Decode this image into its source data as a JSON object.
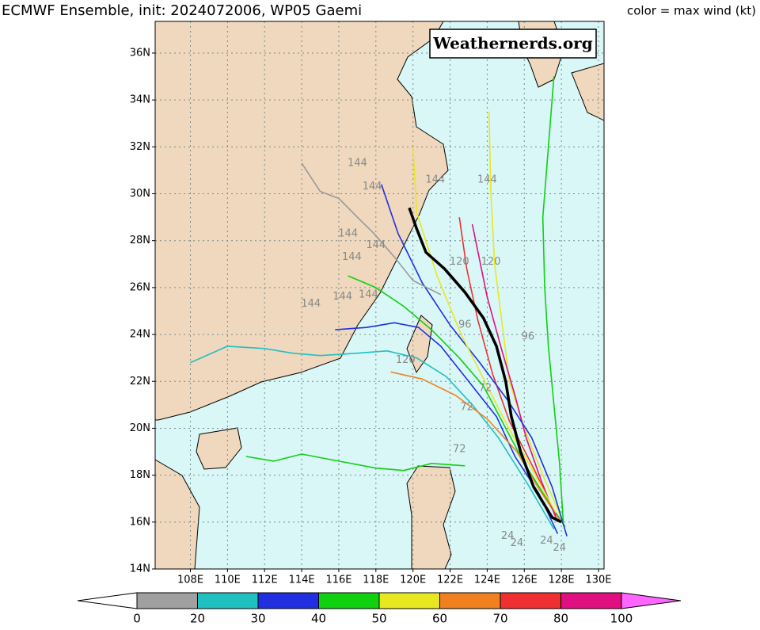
{
  "title": "ECMWF Ensemble, init: 2024072006, WP05 Gaemi",
  "subtitle": "color = max wind (kt)",
  "watermark": "Weathernerds.org",
  "map": {
    "xlim": [
      106.1,
      130.3
    ],
    "ylim": [
      14,
      37.35
    ],
    "xticks": [
      {
        "value": 108,
        "label": "108E"
      },
      {
        "value": 110,
        "label": "110E"
      },
      {
        "value": 112,
        "label": "112E"
      },
      {
        "value": 114,
        "label": "114E"
      },
      {
        "value": 116,
        "label": "116E"
      },
      {
        "value": 118,
        "label": "118E"
      },
      {
        "value": 120,
        "label": "120E"
      },
      {
        "value": 122,
        "label": "122E"
      },
      {
        "value": 124,
        "label": "124E"
      },
      {
        "value": 126,
        "label": "126E"
      },
      {
        "value": 128,
        "label": "128E"
      },
      {
        "value": 130,
        "label": "130E"
      }
    ],
    "yticks": [
      {
        "value": 14,
        "label": "14N"
      },
      {
        "value": 16,
        "label": "16N"
      },
      {
        "value": 18,
        "label": "18N"
      },
      {
        "value": 20,
        "label": "20N"
      },
      {
        "value": 22,
        "label": "22N"
      },
      {
        "value": 24,
        "label": "24N"
      },
      {
        "value": 26,
        "label": "26N"
      },
      {
        "value": 28,
        "label": "28N"
      },
      {
        "value": 30,
        "label": "30N"
      },
      {
        "value": 32,
        "label": "32N"
      },
      {
        "value": 34,
        "label": "34N"
      },
      {
        "value": 36,
        "label": "36N"
      }
    ],
    "grid": true,
    "ocean_color": "#d9f7f7",
    "tracks": [
      {
        "color": "#000000",
        "lons": [
          128.0,
          127.5,
          126.5,
          125.8,
          125.3,
          125.0,
          124.5,
          123.8,
          122.8,
          121.7,
          120.7,
          120.2,
          119.8
        ],
        "lats": [
          16.0,
          16.2,
          17.5,
          19.0,
          20.5,
          22.0,
          23.5,
          24.7,
          25.8,
          26.8,
          27.5,
          28.5,
          29.4
        ]
      },
      {
        "color": "#10d010",
        "lons": [
          128.2,
          127.2,
          126.0,
          125.0,
          123.8,
          122.5,
          121.0,
          119.5,
          118.0,
          116.5
        ],
        "lats": [
          15.8,
          17.0,
          18.5,
          20.0,
          21.8,
          23.0,
          24.2,
          25.2,
          26.0,
          26.5
        ]
      },
      {
        "color": "#2030e0",
        "lons": [
          127.8,
          126.8,
          125.5,
          124.5,
          123.0,
          121.5,
          120.3,
          119.0,
          117.5,
          115.8
        ],
        "lats": [
          15.5,
          17.2,
          18.8,
          20.5,
          22.0,
          23.5,
          24.3,
          24.5,
          24.3,
          24.2
        ]
      },
      {
        "color": "#20c0c0",
        "lons": [
          127.6,
          126.2,
          124.6,
          123.2,
          121.8,
          120.2,
          118.6,
          117.0,
          115.0,
          113.5,
          112.0,
          110.0,
          108.0
        ],
        "lats": [
          15.7,
          17.6,
          19.6,
          21.0,
          22.2,
          23.0,
          23.3,
          23.2,
          23.1,
          23.2,
          23.4,
          23.5,
          22.8
        ]
      },
      {
        "color": "#e8e820",
        "lons": [
          128.0,
          127.0,
          126.0,
          125.2,
          124.8,
          124.4,
          124.2,
          124.1
        ],
        "lats": [
          16.2,
          18.0,
          20.0,
          22.0,
          24.5,
          27.0,
          30.0,
          33.5
        ]
      },
      {
        "color": "#f08020",
        "lons": [
          127.9,
          126.8,
          125.6,
          124.0,
          122.3,
          120.5,
          118.8
        ],
        "lats": [
          16.1,
          17.4,
          19.0,
          20.4,
          21.4,
          22.1,
          22.4
        ]
      },
      {
        "color": "#f03030",
        "lons": [
          127.7,
          126.5,
          125.2,
          124.3,
          123.5,
          122.9,
          122.5
        ],
        "lats": [
          16.3,
          18.3,
          20.3,
          22.3,
          24.6,
          26.8,
          29.0
        ]
      },
      {
        "color": "#e01080",
        "lons": [
          127.8,
          126.9,
          126.1,
          125.5,
          124.8,
          124.0,
          123.2
        ],
        "lats": [
          16.0,
          17.8,
          19.6,
          21.4,
          23.3,
          25.6,
          28.7
        ]
      },
      {
        "color": "#2030e0",
        "lons": [
          128.3,
          127.5,
          126.4,
          125.1,
          123.6,
          122.0,
          120.5,
          119.2,
          118.3
        ],
        "lats": [
          15.4,
          17.5,
          19.6,
          21.2,
          22.8,
          24.4,
          26.2,
          28.3,
          30.4
        ]
      },
      {
        "color": "#10d010",
        "lons": [
          128.1,
          127.9,
          127.6,
          127.3,
          127.1,
          127.0,
          127.3,
          127.6
        ],
        "lats": [
          16.0,
          18.5,
          21.0,
          23.5,
          26.0,
          29.0,
          32.0,
          35.0
        ]
      },
      {
        "color": "#999999",
        "lons": [
          121.5,
          120.0,
          119.0,
          117.9,
          117.0,
          116.0,
          115.0,
          114.0
        ],
        "lats": [
          25.7,
          26.3,
          27.3,
          28.3,
          29.0,
          29.8,
          30.1,
          31.3
        ]
      },
      {
        "color": "#10d010",
        "lons": [
          122.8,
          121.0,
          119.5,
          118.0,
          116.0,
          114.0,
          112.5,
          111.0
        ],
        "lats": [
          18.4,
          18.5,
          18.2,
          18.3,
          18.6,
          18.9,
          18.6,
          18.8
        ]
      },
      {
        "color": "#e8e820",
        "lons": [
          127.7,
          126.6,
          125.3,
          124.0,
          122.6,
          121.3,
          120.2,
          120.0
        ],
        "lats": [
          16.4,
          18.0,
          19.8,
          21.8,
          24.0,
          26.5,
          29.2,
          32.0
        ]
      }
    ],
    "hour_labels": [
      {
        "text": "144",
        "lon": 117.0,
        "lat": 31.3
      },
      {
        "text": "144",
        "lon": 117.8,
        "lat": 30.3
      },
      {
        "text": "144",
        "lon": 116.5,
        "lat": 28.3
      },
      {
        "text": "144",
        "lon": 118.0,
        "lat": 27.8
      },
      {
        "text": "144",
        "lon": 116.7,
        "lat": 27.3
      },
      {
        "text": "144",
        "lon": 114.5,
        "lat": 25.3
      },
      {
        "text": "144",
        "lon": 116.2,
        "lat": 25.6
      },
      {
        "text": "144",
        "lon": 117.6,
        "lat": 25.7
      },
      {
        "text": "144",
        "lon": 121.2,
        "lat": 30.6
      },
      {
        "text": "144",
        "lon": 124.0,
        "lat": 30.6
      },
      {
        "text": "120",
        "lon": 124.2,
        "lat": 27.1
      },
      {
        "text": "120",
        "lon": 122.5,
        "lat": 27.1
      },
      {
        "text": "120",
        "lon": 119.6,
        "lat": 22.9
      },
      {
        "text": "96",
        "lon": 126.2,
        "lat": 23.9
      },
      {
        "text": "96",
        "lon": 122.8,
        "lat": 24.4
      },
      {
        "text": "72",
        "lon": 123.9,
        "lat": 21.7
      },
      {
        "text": "72",
        "lon": 122.5,
        "lat": 19.1
      },
      {
        "text": "72",
        "lon": 122.9,
        "lat": 20.9
      },
      {
        "text": "24",
        "lon": 125.1,
        "lat": 15.4
      },
      {
        "text": "24",
        "lon": 125.6,
        "lat": 15.1
      },
      {
        "text": "24",
        "lon": 127.2,
        "lat": 15.2
      },
      {
        "text": "24",
        "lon": 127.9,
        "lat": 14.9
      }
    ]
  },
  "colorbar": {
    "ticks": [
      0,
      20,
      30,
      40,
      50,
      60,
      70,
      80,
      100
    ],
    "colors": [
      "#a0a0a0",
      "#20c0c0",
      "#2030e0",
      "#10d010",
      "#e8e820",
      "#f08020",
      "#f03030",
      "#e01080"
    ],
    "under_color": "#ffffff",
    "over_color": "#ff66ff"
  }
}
